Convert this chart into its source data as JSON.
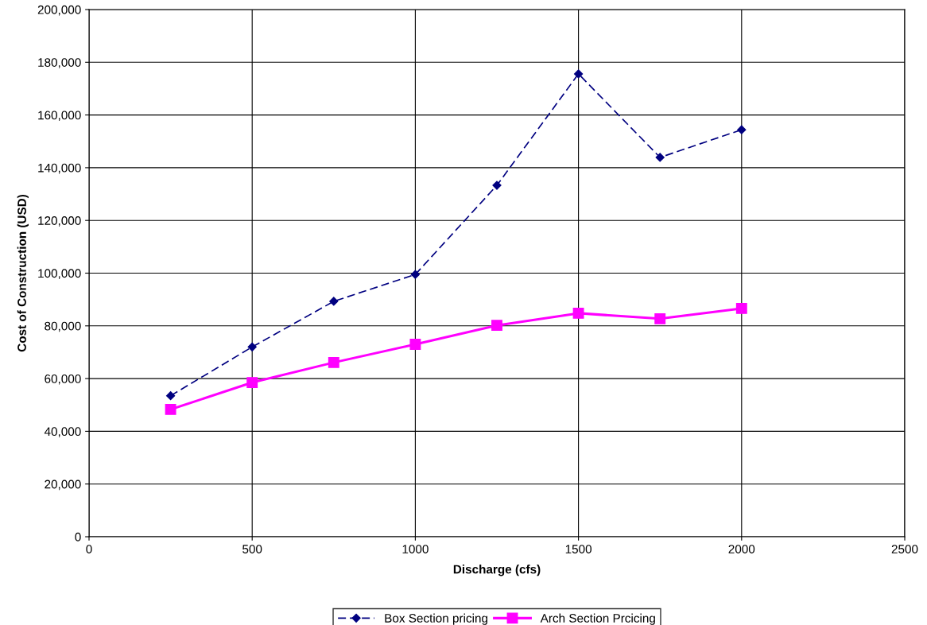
{
  "chart_data": {
    "type": "line",
    "xlabel": "Discharge (cfs)",
    "ylabel": "Cost of Construction (USD)",
    "x": [
      250,
      500,
      750,
      1000,
      1250,
      1500,
      1750,
      2000
    ],
    "series": [
      {
        "name": "Box Section pricing",
        "color": "#000080",
        "marker": "diamond",
        "line_style": "dashed",
        "values": [
          53500,
          72000,
          89300,
          99500,
          133300,
          175600,
          143900,
          154400
        ]
      },
      {
        "name": "Arch Section Prcicing",
        "color": "#ff00ff",
        "marker": "square",
        "line_style": "solid",
        "values": [
          48300,
          58500,
          66100,
          73000,
          80200,
          84800,
          82700,
          86600
        ]
      }
    ],
    "xlim": [
      0,
      2500
    ],
    "xticks": [
      0,
      500,
      1000,
      1500,
      2000,
      2500
    ],
    "ylim": [
      0,
      200000
    ],
    "yticks": [
      0,
      {
        "value": 20000,
        "label": "20,000"
      },
      {
        "value": 40000,
        "label": "40,000"
      },
      {
        "value": 60000,
        "label": "60,000"
      },
      {
        "value": 80000,
        "label": "80,000"
      },
      {
        "value": 100000,
        "label": "100,000"
      },
      {
        "value": 120000,
        "label": "120,000"
      },
      {
        "value": 140000,
        "label": "140,000"
      },
      {
        "value": 160000,
        "label": "160,000"
      },
      {
        "value": 180000,
        "label": "180,000"
      },
      {
        "value": 200000,
        "label": "200,000"
      }
    ],
    "grid": true,
    "legend": "bottom"
  }
}
